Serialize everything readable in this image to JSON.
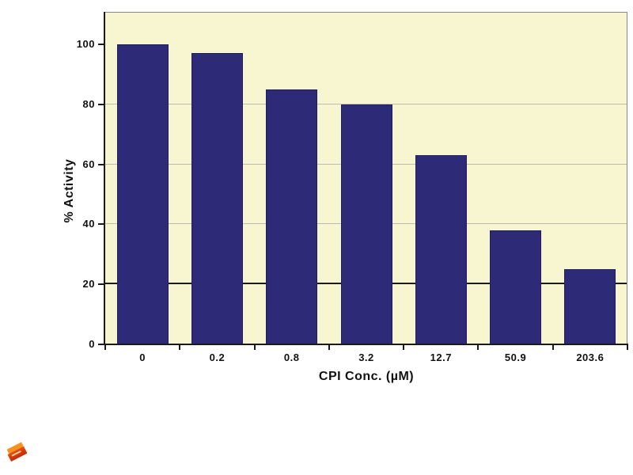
{
  "chart_data": {
    "type": "bar",
    "title": "",
    "xlabel": "CPI Conc. (µM)",
    "ylabel": "% Activity",
    "categories": [
      "0",
      "0.2",
      "0.8",
      "3.2",
      "12.7",
      "50.9",
      "203.6"
    ],
    "values": [
      100,
      97,
      85,
      80,
      63,
      38,
      25
    ],
    "ylim": [
      0,
      110
    ],
    "yticks": [
      0,
      20,
      40,
      60,
      80,
      100
    ],
    "gridlines_light": [
      40,
      60,
      80
    ],
    "gridlines_dark": [
      20
    ],
    "grid": true,
    "legend_position": "none",
    "colors": {
      "bar": "#2d2a78",
      "bar_border": "#201d60",
      "plot_background": "#f8f5d1",
      "page_background": "#ffffff",
      "gridline_light": "#bdbcae",
      "gridline_dark": "#1b1b1b",
      "axis": "#1a1a1a",
      "outer_border": "#8a8a82",
      "label_text": "#111111"
    }
  },
  "icons": {
    "brick_logo": {
      "name": "orange-brick-logo",
      "color_front": "#d43a10",
      "color_top": "#f6921e"
    }
  }
}
